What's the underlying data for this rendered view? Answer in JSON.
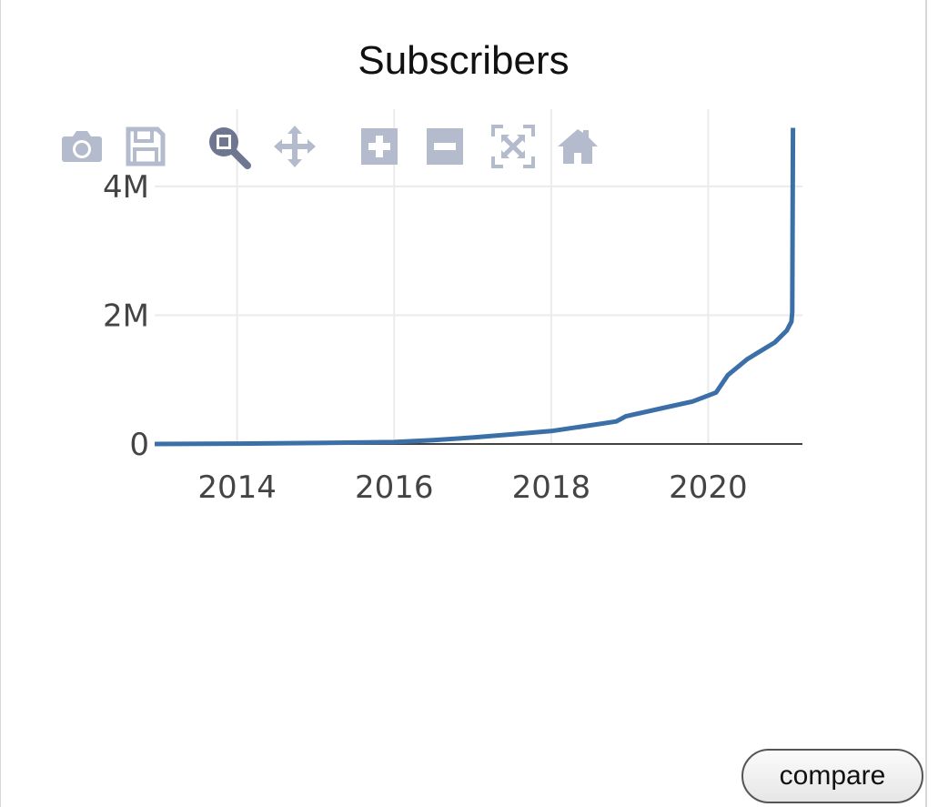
{
  "chart_data": {
    "type": "line",
    "title": "Subscribers",
    "xlabel": "",
    "ylabel": "",
    "x_ticks": [
      "2014",
      "2016",
      "2018",
      "2020"
    ],
    "y_ticks": [
      "0",
      "2M",
      "4M"
    ],
    "y_tick_values": [
      0,
      2000000,
      4000000
    ],
    "x_tick_values": [
      2014,
      2016,
      2018,
      2020
    ],
    "xlim": [
      2012.95,
      2021.2
    ],
    "ylim": [
      0,
      5200000
    ],
    "grid": true,
    "line_color": "#3b6fa8",
    "series": [
      {
        "x": [
          2012.95,
          2014.0,
          2015.0,
          2016.0,
          2016.5,
          2017.0,
          2017.5,
          2018.0,
          2018.5,
          2018.83,
          2018.95,
          2019.5,
          2019.8,
          2020.1,
          2020.25,
          2020.5,
          2020.85,
          2021.0,
          2021.06,
          2021.07,
          2021.08
        ],
        "y": [
          0,
          5000,
          15000,
          30000,
          60000,
          100000,
          150000,
          200000,
          290000,
          350000,
          430000,
          580000,
          660000,
          800000,
          1070000,
          1320000,
          1580000,
          1760000,
          1900000,
          2050000,
          4910000
        ]
      }
    ]
  },
  "toolbar": {
    "icons": [
      "camera-icon",
      "save-icon",
      "zoom-icon",
      "pan-icon",
      "zoom-in-icon",
      "zoom-out-icon",
      "autoscale-icon",
      "reset-axes-icon"
    ]
  },
  "compare_button": {
    "label": "compare"
  }
}
